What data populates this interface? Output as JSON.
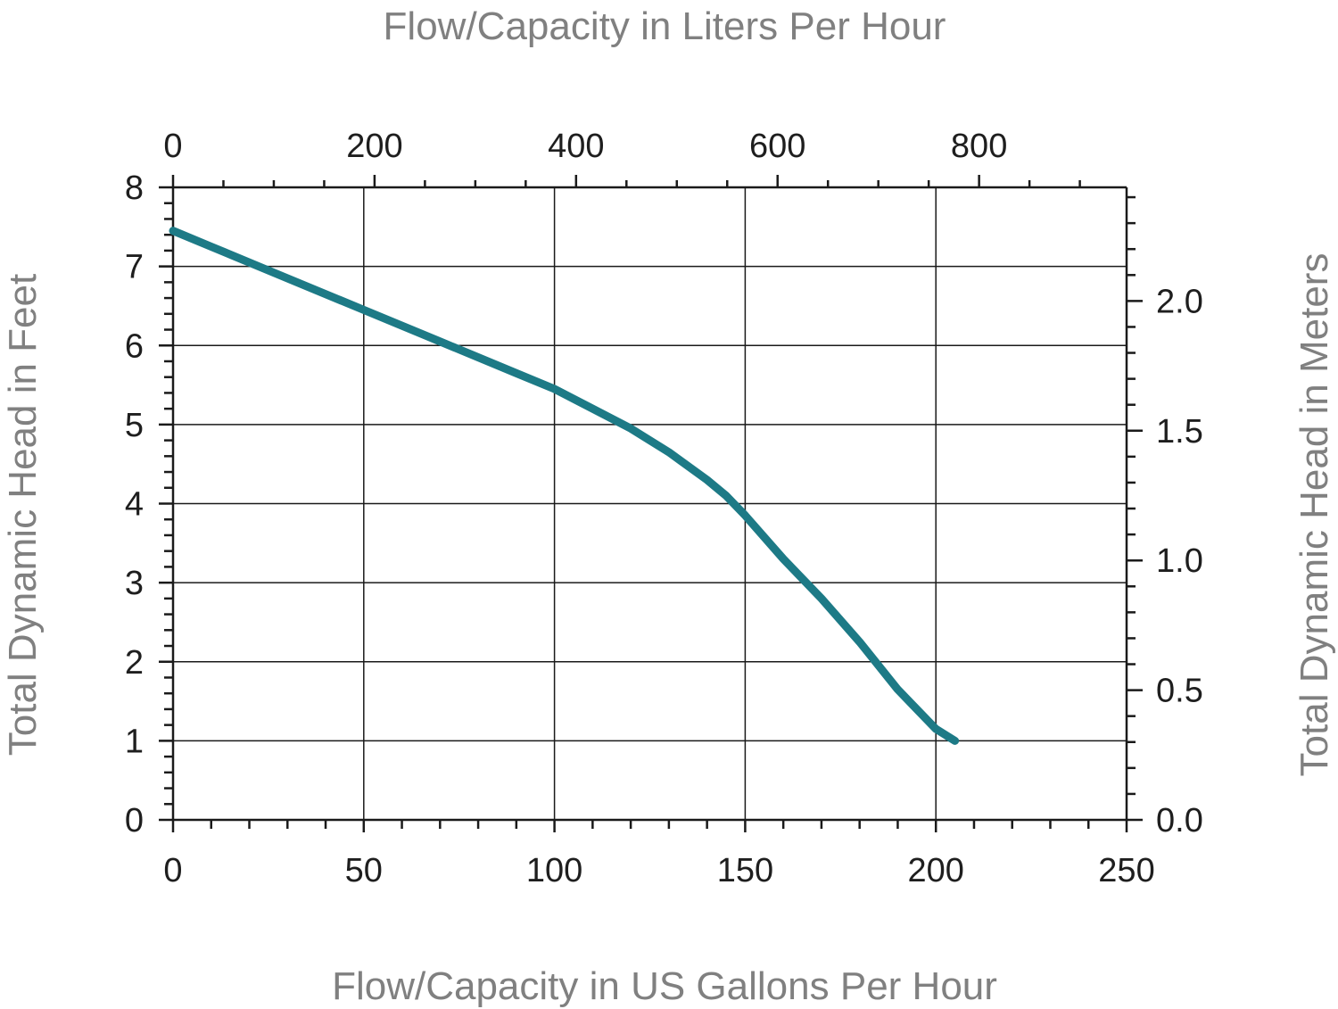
{
  "colors": {
    "curve": "#1d7a86",
    "grid": "#1a1a1a",
    "title_text": "#808080",
    "tick_text": "#1e1e1e"
  },
  "chart_data": {
    "type": "line",
    "grid": true,
    "top_xlabel": "Flow/Capacity in Liters Per Hour",
    "xlabel": "Flow/Capacity in US Gallons Per Hour",
    "ylabel": "Total Dynamic Head in Feet",
    "y2label": "Total Dynamic Head in Meters",
    "xlim": [
      0,
      250
    ],
    "ylim": [
      0,
      8
    ],
    "top_xlim": [
      0,
      946.4
    ],
    "y2lim": [
      0,
      2.438
    ],
    "x_ticks": [
      "0",
      "50",
      "100",
      "150",
      "200",
      "250"
    ],
    "y_ticks": [
      "0",
      "1",
      "2",
      "3",
      "4",
      "5",
      "6",
      "7",
      "8"
    ],
    "top_x_ticks": [
      "0",
      "200",
      "400",
      "600",
      "800"
    ],
    "y2_ticks": [
      "0.0",
      "0.5",
      "1.0",
      "1.5",
      "2.0"
    ],
    "series": [
      {
        "x": [
          0,
          10,
          25,
          50,
          70,
          90,
          100,
          110,
          120,
          130,
          140,
          145,
          150,
          160,
          170,
          180,
          190,
          200,
          205
        ],
        "y": [
          7.45,
          7.25,
          6.95,
          6.45,
          6.05,
          5.65,
          5.45,
          5.2,
          4.95,
          4.65,
          4.3,
          4.1,
          3.85,
          3.3,
          2.8,
          2.25,
          1.65,
          1.15,
          1.0
        ]
      }
    ]
  }
}
